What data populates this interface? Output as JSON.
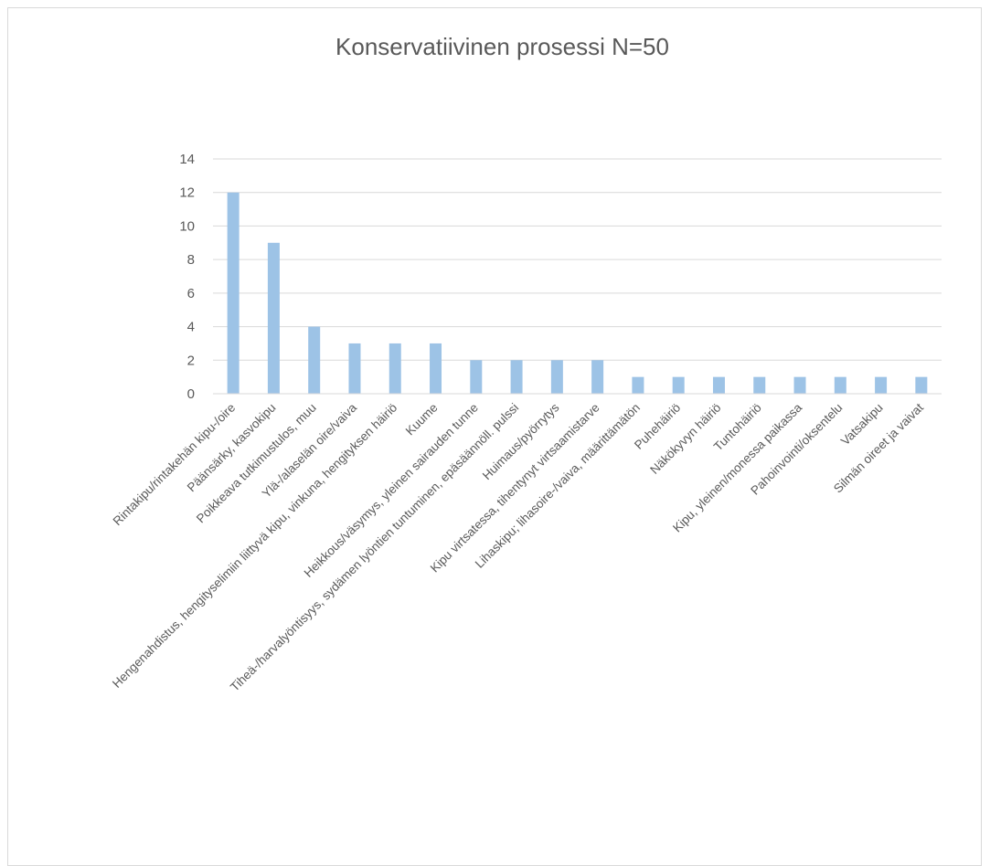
{
  "chart_data": {
    "type": "bar",
    "title": "Konservatiivinen prosessi N=50",
    "categories": [
      "Rintakipu/rintakehän kipu-/oire",
      "Päänsärky, kasvokipu",
      "Poikkeava tutkimustulos, muu",
      "Ylä-/alaselän oire/vaiva",
      "Hengenahdistus, hengityselimiin liittyvä kipu, vinkuna, hengityksen häiriö",
      "Kuume",
      "Heikkous/väsymys, yleinen sairauden tunne",
      "Tiheä-/harvalyöntisyys, sydämen lyöntien tuntuminen, epäsäännöll. pulssi",
      "Huimaus/pyörrytys",
      "Kipu virtsatessa, tihentynyt virtsaamistarve",
      "Lihaskipu; lihasoire-/vaiva, määrittämätön",
      "Puhehäiriö",
      "Näkökyvyn häiriö",
      "Tuntohäiriö",
      "Kipu, yleinen/monessa paikassa",
      "Pahoinvointi/oksentelu",
      "Vatsakipu",
      "Silmän oireet ja vaivat"
    ],
    "values": [
      12,
      9,
      4,
      3,
      3,
      3,
      2,
      2,
      2,
      2,
      1,
      1,
      1,
      1,
      1,
      1,
      1,
      1
    ],
    "ylim": [
      0,
      14
    ],
    "yticks": [
      "0",
      "2",
      "4",
      "6",
      "8",
      "10",
      "12",
      "14"
    ],
    "xlabel": "",
    "ylabel": "",
    "grid": true,
    "bar_color": "#9dc3e6",
    "grid_color": "#d9d9d9",
    "text_color": "#595959"
  }
}
